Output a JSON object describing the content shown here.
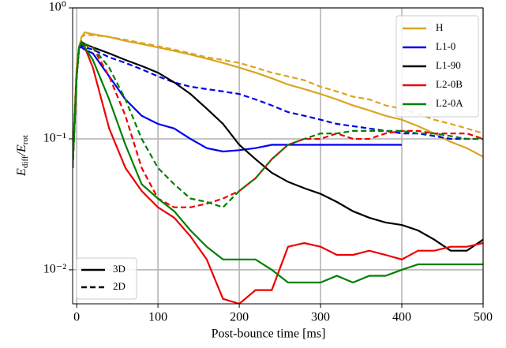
{
  "chart_data": {
    "type": "line",
    "x_label": "Post-bounce time [ms]",
    "y_label_parts": [
      "E",
      "diff",
      "/E",
      "rot"
    ],
    "log_y": true,
    "grid": true,
    "xlim": [
      -5,
      500
    ],
    "ylim": [
      0.0055,
      1
    ],
    "xticks": [
      0,
      100,
      200,
      300,
      400,
      500
    ],
    "yticks": [
      {
        "value": 0.01,
        "label": "10⁻²"
      },
      {
        "value": 0.1,
        "label": "10⁻¹"
      },
      {
        "value": 1,
        "label": "10⁰"
      }
    ],
    "legend": "upper right",
    "style_legend": "lower left",
    "line_styles": [
      {
        "name": "3D",
        "dash": "none"
      },
      {
        "name": "2D",
        "dash": "7,4"
      }
    ],
    "x": [
      -5,
      0,
      3,
      6,
      10,
      20,
      40,
      60,
      80,
      100,
      120,
      140,
      160,
      180,
      200,
      220,
      240,
      260,
      280,
      300,
      320,
      340,
      360,
      380,
      400,
      420,
      440,
      460,
      480,
      500
    ],
    "series": [
      {
        "name": "H",
        "color": "#daa520",
        "3D": [
          0.07,
          0.35,
          0.5,
          0.6,
          0.65,
          0.63,
          0.6,
          0.56,
          0.53,
          0.5,
          0.47,
          0.44,
          0.41,
          0.38,
          0.35,
          0.32,
          0.29,
          0.26,
          0.24,
          0.22,
          0.2,
          0.18,
          0.165,
          0.15,
          0.14,
          0.125,
          0.11,
          0.095,
          0.085,
          0.073
        ],
        "2D": [
          0.07,
          0.35,
          0.5,
          0.6,
          0.62,
          0.62,
          0.6,
          0.57,
          0.54,
          0.51,
          0.48,
          0.45,
          0.42,
          0.4,
          0.38,
          0.35,
          0.32,
          0.3,
          0.28,
          0.25,
          0.23,
          0.21,
          0.2,
          0.18,
          0.17,
          0.155,
          0.14,
          0.13,
          0.12,
          0.11
        ]
      },
      {
        "name": "L1-0",
        "color": "#0000ee",
        "3D": [
          0.06,
          0.3,
          0.5,
          0.5,
          0.48,
          0.45,
          0.3,
          0.2,
          0.15,
          0.13,
          0.12,
          0.1,
          0.085,
          0.08,
          0.082,
          0.085,
          0.09,
          0.09,
          0.09,
          0.09,
          0.09,
          0.09,
          0.09,
          0.09,
          0.09,
          null,
          null,
          null,
          null,
          null
        ],
        "2D": [
          0.06,
          0.3,
          0.5,
          0.52,
          0.5,
          0.48,
          0.42,
          0.38,
          0.34,
          0.3,
          0.27,
          0.25,
          0.24,
          0.23,
          0.22,
          0.2,
          0.18,
          0.16,
          0.15,
          0.14,
          0.13,
          0.125,
          0.12,
          0.115,
          0.11,
          0.11,
          0.105,
          0.1,
          0.1,
          0.1
        ]
      },
      {
        "name": "L1-90",
        "color": "#000000",
        "3D": [
          0.06,
          0.3,
          0.5,
          0.55,
          0.53,
          0.5,
          0.45,
          0.4,
          0.36,
          0.32,
          0.27,
          0.22,
          0.17,
          0.13,
          0.09,
          0.07,
          0.055,
          0.047,
          0.042,
          0.038,
          0.033,
          0.028,
          0.025,
          0.023,
          0.022,
          0.02,
          0.017,
          0.014,
          0.014,
          0.017
        ]
      },
      {
        "name": "L2-0B",
        "color": "#ee0000",
        "3D": [
          0.06,
          0.3,
          0.5,
          0.55,
          0.5,
          0.35,
          0.12,
          0.06,
          0.04,
          0.03,
          0.025,
          0.018,
          0.012,
          0.006,
          0.0055,
          0.007,
          0.007,
          0.015,
          0.016,
          0.015,
          0.013,
          0.013,
          0.014,
          0.013,
          0.012,
          0.014,
          0.014,
          0.015,
          0.015,
          0.016
        ],
        "2D": [
          0.06,
          0.3,
          0.5,
          0.55,
          0.52,
          0.5,
          0.3,
          0.15,
          0.06,
          0.035,
          0.03,
          0.03,
          0.032,
          0.035,
          0.04,
          0.05,
          0.07,
          0.09,
          0.1,
          0.1,
          0.11,
          0.1,
          0.1,
          0.11,
          0.115,
          0.115,
          0.11,
          0.11,
          0.11,
          0.1
        ]
      },
      {
        "name": "L2-0A",
        "color": "#008000",
        "3D": [
          0.06,
          0.3,
          0.5,
          0.55,
          0.5,
          0.4,
          0.2,
          0.09,
          0.045,
          0.035,
          0.028,
          0.02,
          0.015,
          0.012,
          0.012,
          0.012,
          0.01,
          0.008,
          0.008,
          0.008,
          0.009,
          0.008,
          0.009,
          0.009,
          0.01,
          0.011,
          0.011,
          0.011,
          0.011,
          0.011
        ],
        "2D": [
          0.06,
          0.3,
          0.5,
          0.55,
          0.53,
          0.5,
          0.35,
          0.2,
          0.1,
          0.06,
          0.045,
          0.035,
          0.033,
          0.03,
          0.04,
          0.05,
          0.07,
          0.09,
          0.1,
          0.11,
          0.11,
          0.115,
          0.115,
          0.115,
          0.115,
          0.11,
          0.11,
          0.105,
          0.1,
          0.1
        ]
      }
    ]
  }
}
